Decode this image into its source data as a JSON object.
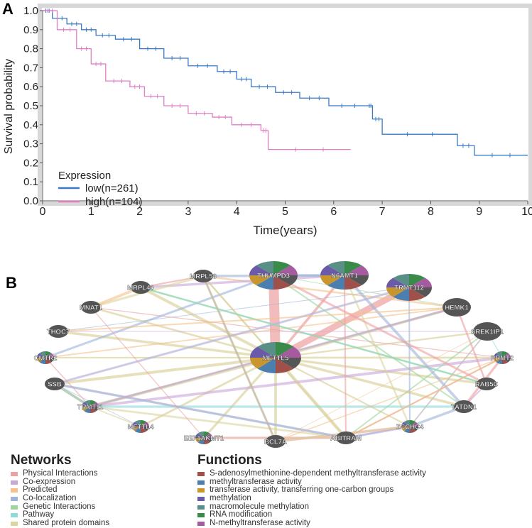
{
  "panels": {
    "a": "A",
    "b": "B"
  },
  "chart_data": {
    "type": "line",
    "subtype": "kaplan-meier",
    "xlabel": "Time(years)",
    "ylabel": "Survival probability",
    "xlim": [
      0,
      10
    ],
    "ylim": [
      0,
      1
    ],
    "xticks": [
      "0",
      "1",
      "2",
      "3",
      "4",
      "5",
      "6",
      "7",
      "8",
      "9",
      "10"
    ],
    "yticks": [
      "0.0",
      "0.1",
      "0.2",
      "0.3",
      "0.4",
      "0.5",
      "0.6",
      "0.7",
      "0.8",
      "0.9",
      "1.0"
    ],
    "legend_title": "Expression",
    "legend_position": "bottom-left",
    "series": [
      {
        "name": "low(n=261)",
        "color": "#3a78c8",
        "x": [
          0,
          0.2,
          0.5,
          0.8,
          1.1,
          1.5,
          2.0,
          2.5,
          3.0,
          3.6,
          4.0,
          4.3,
          4.8,
          5.3,
          5.9,
          6.7,
          6.8,
          7.0,
          8.55,
          8.9,
          10
        ],
        "y": [
          1.0,
          0.96,
          0.93,
          0.9,
          0.87,
          0.85,
          0.8,
          0.75,
          0.71,
          0.68,
          0.64,
          0.6,
          0.57,
          0.54,
          0.5,
          0.5,
          0.43,
          0.35,
          0.29,
          0.24,
          0.24
        ]
      },
      {
        "name": "high(n=104)",
        "color": "#e07ec4",
        "x": [
          0,
          0.3,
          0.7,
          1.0,
          1.3,
          1.8,
          2.1,
          2.5,
          3.0,
          3.5,
          3.9,
          4.5,
          4.65,
          6.35
        ],
        "y": [
          1.0,
          0.9,
          0.8,
          0.72,
          0.63,
          0.6,
          0.55,
          0.5,
          0.46,
          0.44,
          0.4,
          0.37,
          0.27,
          0.27
        ]
      }
    ]
  },
  "network": {
    "center": "METTL5",
    "nodes": [
      "THUMPD3",
      "N6AMT1",
      "TRMT112",
      "HEMK1",
      "SREK1IP1",
      "PRMT2",
      "RAB5C",
      "TATDN1",
      "ZCCHC4",
      "ABITRAM",
      "BCL7A",
      "EEF1AKMT1",
      "METTL4",
      "TRMT11",
      "SSB",
      "CMTR2",
      "THOC7",
      "MNAT1",
      "MRPL40",
      "MRPL58"
    ]
  },
  "legend": {
    "networks_title": "Networks",
    "networks": [
      {
        "label": "Physical Interactions",
        "color": "#eea0a0"
      },
      {
        "label": "Co-expression",
        "color": "#c9a7d9"
      },
      {
        "label": "Predicted",
        "color": "#f5c08a"
      },
      {
        "label": "Co-localization",
        "color": "#a0b4d9"
      },
      {
        "label": "Genetic Interactions",
        "color": "#9ed69e"
      },
      {
        "label": "Pathway",
        "color": "#8fd9d9"
      },
      {
        "label": "Shared protein domains",
        "color": "#dcd4a0"
      }
    ],
    "functions_title": "Functions",
    "functions": [
      {
        "label": "S-adenosylmethionine-dependent methyltransferase activity",
        "color": "#a0504a"
      },
      {
        "label": "methyltransferase activity",
        "color": "#4a7fb0"
      },
      {
        "label": "transferase activity, transferring one-carbon groups",
        "color": "#c8962c"
      },
      {
        "label": "methylation",
        "color": "#6a5aa8"
      },
      {
        "label": "macromolecule methylation",
        "color": "#5a8f88"
      },
      {
        "label": "RNA modification",
        "color": "#3a8a4a"
      },
      {
        "label": "N-methyltransferase activity",
        "color": "#a65aa0"
      }
    ]
  }
}
